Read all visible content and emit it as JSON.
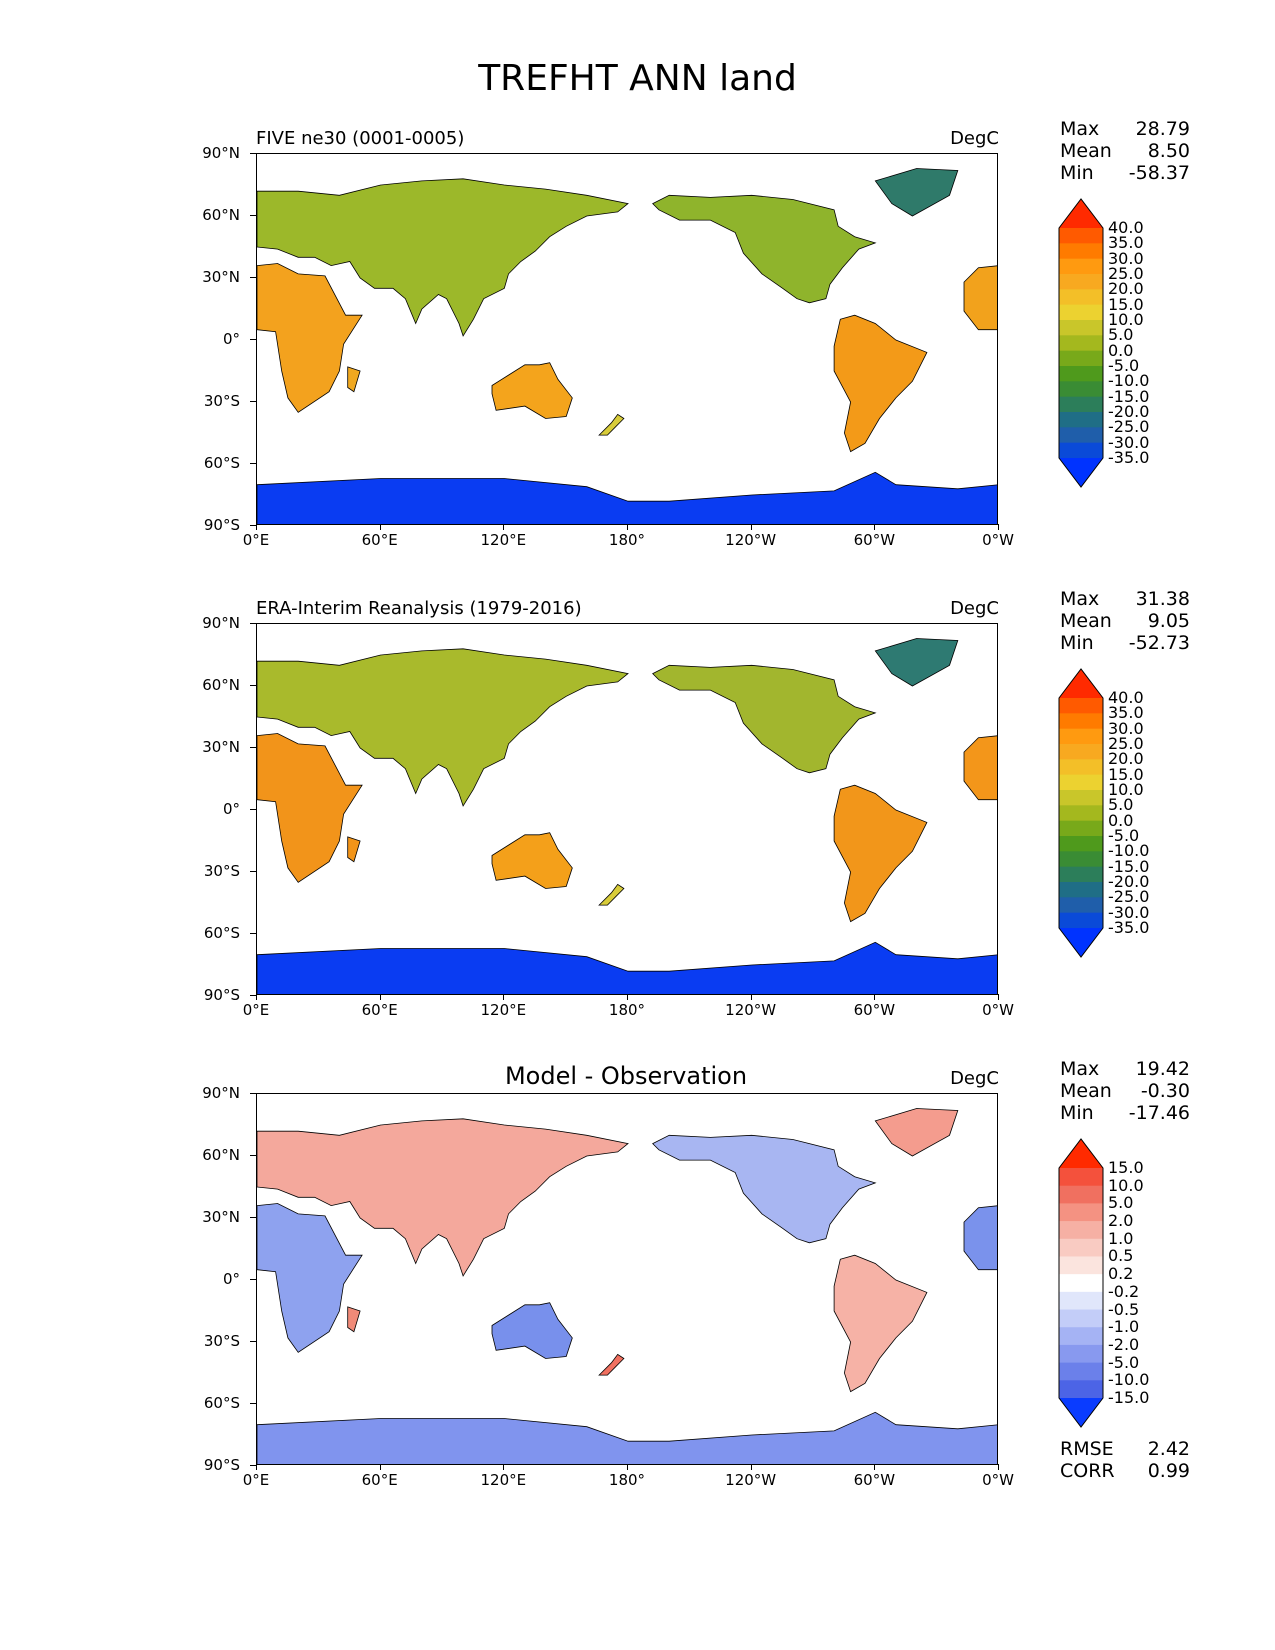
{
  "figure_title": "TREFHT ANN land",
  "axes": {
    "y_labels": [
      "90°N",
      "60°N",
      "30°N",
      "0°",
      "30°S",
      "60°S",
      "90°S"
    ],
    "x_labels": [
      "0°E",
      "60°E",
      "120°E",
      "180°",
      "120°W",
      "60°W",
      "0°W"
    ]
  },
  "panels": [
    {
      "title_left": "FIVE ne30 (0001-0005)",
      "title_center": "",
      "units": "DegC",
      "stats": [
        [
          "Max",
          "28.79"
        ],
        [
          "Mean",
          "8.50"
        ],
        [
          "Min",
          "-58.37"
        ]
      ],
      "colorbar": {
        "levels": [
          "40.0",
          "35.0",
          "30.0",
          "25.0",
          "20.0",
          "15.0",
          "10.0",
          "5.0",
          "0.0",
          "-5.0",
          "-10.0",
          "-15.0",
          "-20.0",
          "-25.0",
          "-30.0",
          "-35.0"
        ],
        "colors": [
          "#ff2a00",
          "#ff5a00",
          "#ff7b00",
          "#ff9a10",
          "#f8a920",
          "#f3bf28",
          "#ecd230",
          "#c9c62a",
          "#a4b81e",
          "#78a91a",
          "#4f9a1c",
          "#3a8c34",
          "#2c7e5a",
          "#1f6e86",
          "#1f5eaa",
          "#0a4ad8",
          "#0033ff"
        ]
      },
      "bottom_stats": []
    },
    {
      "title_left": "ERA-Interim Reanalysis (1979-2016)",
      "title_center": "",
      "units": "DegC",
      "stats": [
        [
          "Max",
          "31.38"
        ],
        [
          "Mean",
          "9.05"
        ],
        [
          "Min",
          "-52.73"
        ]
      ],
      "colorbar": {
        "levels": [
          "40.0",
          "35.0",
          "30.0",
          "25.0",
          "20.0",
          "15.0",
          "10.0",
          "5.0",
          "0.0",
          "-5.0",
          "-10.0",
          "-15.0",
          "-20.0",
          "-25.0",
          "-30.0",
          "-35.0"
        ],
        "colors": [
          "#ff2a00",
          "#ff5a00",
          "#ff7b00",
          "#ff9a10",
          "#f8a920",
          "#f3bf28",
          "#ecd230",
          "#c9c62a",
          "#a4b81e",
          "#78a91a",
          "#4f9a1c",
          "#3a8c34",
          "#2c7e5a",
          "#1f6e86",
          "#1f5eaa",
          "#0a4ad8",
          "#0033ff"
        ]
      },
      "bottom_stats": []
    },
    {
      "title_left": "",
      "title_center": "Model - Observation",
      "units": "DegC",
      "stats": [
        [
          "Max",
          "19.42"
        ],
        [
          "Mean",
          "-0.30"
        ],
        [
          "Min",
          "-17.46"
        ]
      ],
      "colorbar": {
        "levels": [
          "15.0",
          "10.0",
          "5.0",
          "2.0",
          "1.0",
          "0.5",
          "0.2",
          "-0.2",
          "-0.5",
          "-1.0",
          "-2.0",
          "-5.0",
          "-10.0",
          "-15.0"
        ],
        "colors": [
          "#ff2a00",
          "#f4513c",
          "#f07060",
          "#f49282",
          "#f6b0a4",
          "#f9cbc2",
          "#fbe4de",
          "#ffffff",
          "#e0e6fb",
          "#c3cdf8",
          "#a5b3f4",
          "#8899ef",
          "#6b80ea",
          "#4c64e6",
          "#0a3cff"
        ]
      },
      "bottom_stats": [
        [
          "RMSE",
          "2.42"
        ],
        [
          "CORR",
          "0.99"
        ]
      ]
    }
  ]
}
